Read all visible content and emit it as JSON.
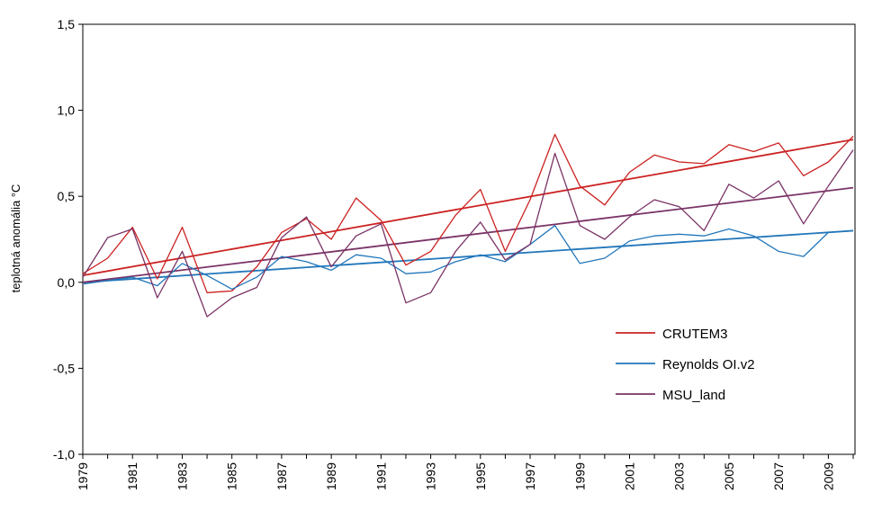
{
  "chart_data": {
    "type": "line",
    "ylabel": "teplotná anomália °C",
    "ylim": [
      -1.0,
      1.5
    ],
    "xlim": [
      1979,
      2010
    ],
    "y_ticks": [
      -1.0,
      -0.5,
      0.0,
      0.5,
      1.0,
      1.5
    ],
    "y_tick_labels": [
      "-1,0",
      "-0,5",
      "0,0",
      "0,5",
      "1,0",
      "1,5"
    ],
    "x_tick_labels": [
      "1979",
      "1981",
      "1983",
      "1985",
      "1987",
      "1989",
      "1991",
      "1993",
      "1995",
      "1997",
      "1999",
      "2001",
      "2003",
      "2005",
      "2007",
      "2009"
    ],
    "grid": false,
    "legend_position": "lower-right",
    "x": [
      1979,
      1980,
      1981,
      1982,
      1983,
      1984,
      1985,
      1986,
      1987,
      1988,
      1989,
      1990,
      1991,
      1992,
      1993,
      1994,
      1995,
      1996,
      1997,
      1998,
      1999,
      2000,
      2001,
      2002,
      2003,
      2004,
      2005,
      2006,
      2007,
      2008,
      2009,
      2010
    ],
    "series": [
      {
        "name": "CRUTEM3",
        "color": "#cc2222",
        "values": [
          0.05,
          0.14,
          0.32,
          0.02,
          0.32,
          -0.06,
          -0.05,
          0.09,
          0.29,
          0.37,
          0.25,
          0.49,
          0.36,
          0.1,
          0.18,
          0.39,
          0.54,
          0.18,
          0.48,
          0.86,
          0.56,
          0.45,
          0.64,
          0.74,
          0.7,
          0.69,
          0.8,
          0.76,
          0.81,
          0.62,
          0.7,
          0.85
        ],
        "trend": [
          0.04,
          0.83
        ]
      },
      {
        "name": "Reynolds OI.v2",
        "color": "#2277bb",
        "values": [
          -0.01,
          0.01,
          0.03,
          -0.02,
          0.11,
          0.04,
          -0.04,
          0.03,
          0.15,
          0.12,
          0.07,
          0.16,
          0.14,
          0.05,
          0.06,
          0.12,
          0.16,
          0.12,
          0.22,
          0.33,
          0.11,
          0.14,
          0.24,
          0.27,
          0.28,
          0.27,
          0.31,
          0.27,
          0.18,
          0.15,
          0.29,
          0.3
        ],
        "trend": [
          0.0,
          0.3
        ]
      },
      {
        "name": "MSU_land",
        "color": "#7a3366",
        "values": [
          0.03,
          0.26,
          0.31,
          -0.09,
          0.18,
          -0.2,
          -0.09,
          -0.03,
          0.26,
          0.38,
          0.09,
          0.27,
          0.34,
          -0.12,
          -0.06,
          0.18,
          0.35,
          0.13,
          0.22,
          0.75,
          0.33,
          0.25,
          0.38,
          0.48,
          0.44,
          0.3,
          0.57,
          0.49,
          0.59,
          0.34,
          0.56,
          0.77
        ],
        "trend": [
          0.0,
          0.55
        ]
      }
    ]
  }
}
